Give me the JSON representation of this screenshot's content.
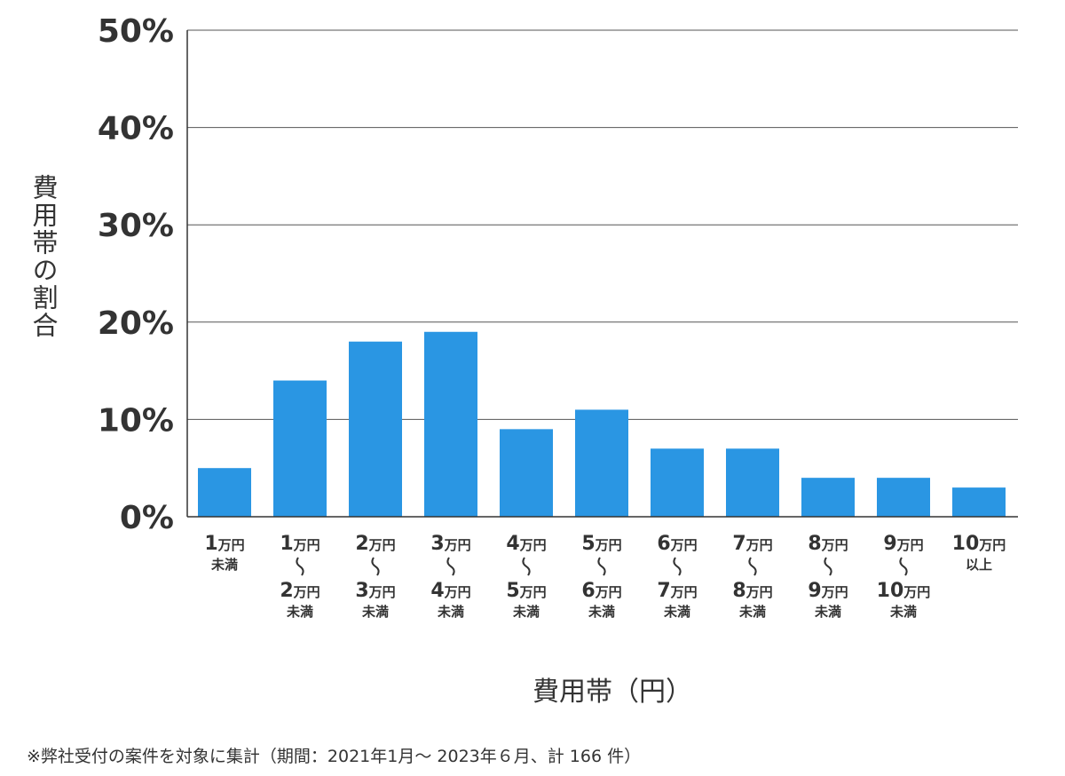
{
  "chart_data": {
    "type": "bar",
    "ylabel": "費用帯の割合",
    "xlabel": "費用帯（円）",
    "ylim": [
      0,
      50
    ],
    "yticks": [
      {
        "value": 0,
        "label": "0%"
      },
      {
        "value": 10,
        "label": "10%"
      },
      {
        "value": 20,
        "label": "20%"
      },
      {
        "value": 30,
        "label": "30%"
      },
      {
        "value": 40,
        "label": "40%"
      },
      {
        "value": 50,
        "label": "50%"
      }
    ],
    "grid": true,
    "bar_color": "#2a96e3",
    "categories": [
      {
        "from_num": "1",
        "from_unit": "万円",
        "to_num": "",
        "to_unit": "",
        "suffix": "未満"
      },
      {
        "from_num": "1",
        "from_unit": "万円",
        "to_num": "2",
        "to_unit": "万円",
        "suffix": "未満"
      },
      {
        "from_num": "2",
        "from_unit": "万円",
        "to_num": "3",
        "to_unit": "万円",
        "suffix": "未満"
      },
      {
        "from_num": "3",
        "from_unit": "万円",
        "to_num": "4",
        "to_unit": "万円",
        "suffix": "未満"
      },
      {
        "from_num": "4",
        "from_unit": "万円",
        "to_num": "5",
        "to_unit": "万円",
        "suffix": "未満"
      },
      {
        "from_num": "5",
        "from_unit": "万円",
        "to_num": "6",
        "to_unit": "万円",
        "suffix": "未満"
      },
      {
        "from_num": "6",
        "from_unit": "万円",
        "to_num": "7",
        "to_unit": "万円",
        "suffix": "未満"
      },
      {
        "from_num": "7",
        "from_unit": "万円",
        "to_num": "8",
        "to_unit": "万円",
        "suffix": "未満"
      },
      {
        "from_num": "8",
        "from_unit": "万円",
        "to_num": "9",
        "to_unit": "万円",
        "suffix": "未満"
      },
      {
        "from_num": "9",
        "from_unit": "万円",
        "to_num": "10",
        "to_unit": "万円",
        "suffix": "未満"
      },
      {
        "from_num": "10",
        "from_unit": "万円",
        "to_num": "",
        "to_unit": "",
        "suffix": "以上"
      }
    ],
    "values": [
      5,
      14,
      18,
      19,
      9,
      11,
      7,
      7,
      4,
      4,
      3
    ]
  },
  "footnote": "※弊社受付の案件を対象に集計（期間：2021年1月～ 2023年６月、計 166 件）"
}
